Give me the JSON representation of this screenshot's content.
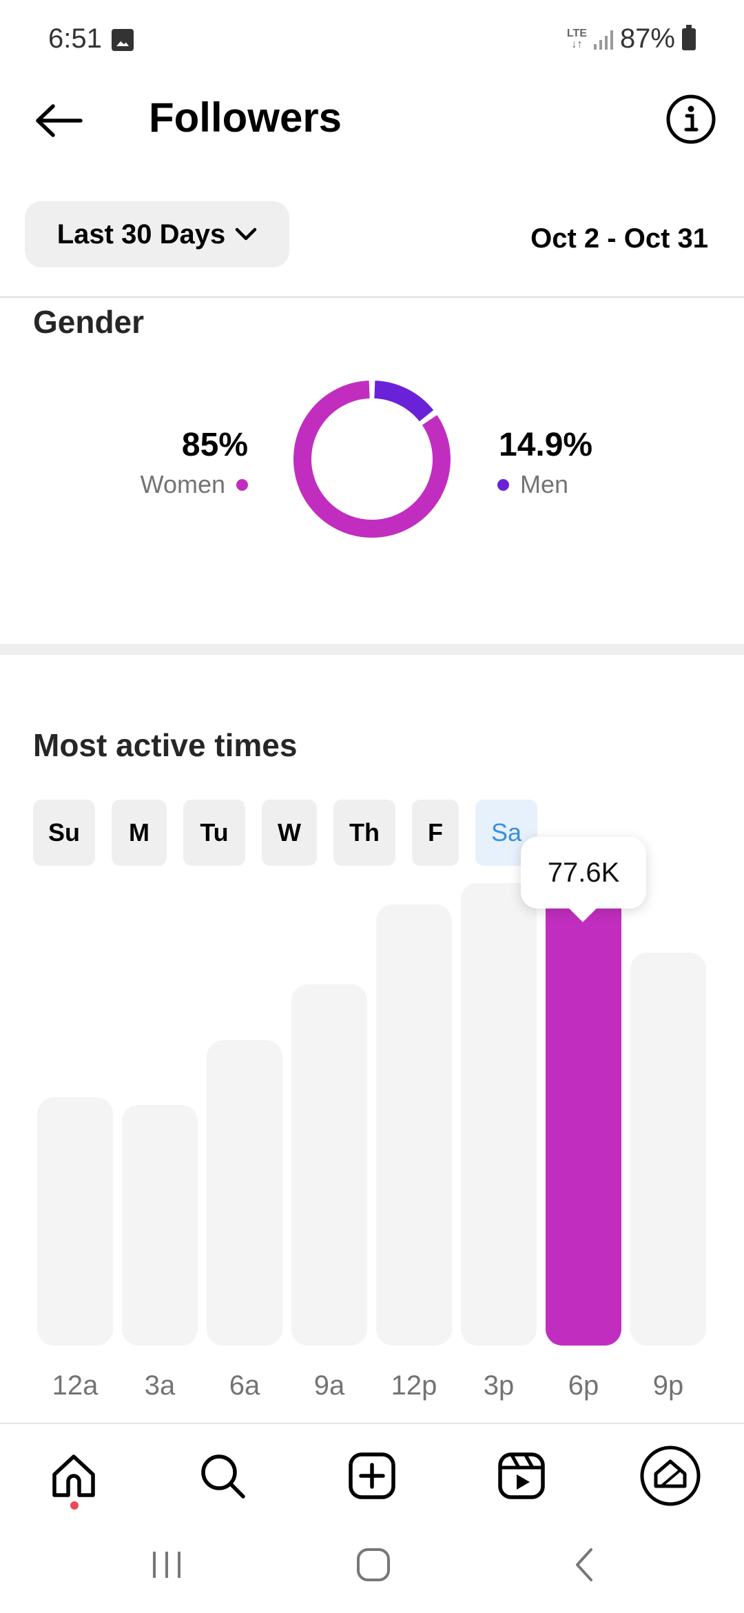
{
  "status_bar": {
    "time": "6:51",
    "network": "LTE",
    "battery": "87%",
    "icons": [
      "image-icon",
      "lte-icon",
      "signal-icon",
      "battery-icon"
    ]
  },
  "header": {
    "title": "Followers",
    "back_icon": "arrow-left-icon",
    "info_icon": "info-icon"
  },
  "filters": {
    "range_label": "Last 30 Days",
    "dropdown_icon": "chevron-down-icon",
    "date_range": "Oct 2 - Oct 31"
  },
  "gender": {
    "title": "Gender",
    "women": {
      "percent": "85%",
      "label": "Women",
      "value": 85,
      "color": "#c12ebf"
    },
    "men": {
      "percent": "14.9%",
      "label": "Men",
      "value": 14.9,
      "color": "#6a22d8"
    }
  },
  "active_times": {
    "title": "Most active times",
    "days": [
      "Su",
      "M",
      "Tu",
      "W",
      "Th",
      "F",
      "Sa"
    ],
    "selected_day": "Sa",
    "tooltip": "77.6K"
  },
  "chart_data": {
    "type": "bar",
    "categories": [
      "12a",
      "3a",
      "6a",
      "9a",
      "12p",
      "3p",
      "6p",
      "9p"
    ],
    "values": [
      40.5,
      39.2,
      49.8,
      58.9,
      71.9,
      75.4,
      77.6,
      64.1
    ],
    "selected_index": 6,
    "selected_label": "77.6K",
    "colors": {
      "default": "#f4f4f4",
      "selected": "#c12ebf"
    }
  },
  "bottom_nav": {
    "items": [
      "home-icon",
      "search-icon",
      "create-icon",
      "reels-icon",
      "profile-icon"
    ]
  },
  "system_nav": {
    "items": [
      "recents-icon",
      "home-button-icon",
      "back-icon"
    ]
  }
}
